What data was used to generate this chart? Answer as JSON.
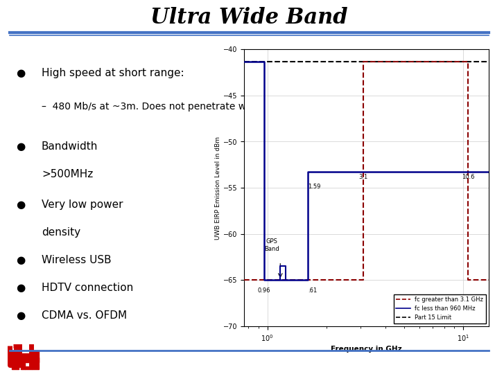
{
  "title": "Ultra Wide Band",
  "bullet1": "High speed at short range:",
  "sub_bullet1": "–  480 Mb/s at ~3m. Does not penetrate walls",
  "bullet2": "Bandwidth",
  "bullet2b": ">500MHz",
  "bullet3": "Very low power",
  "bullet3b": "density",
  "bullet4": "Wireless USB",
  "bullet5": "HDTV connection",
  "bullet6": "CDMA vs. OFDM",
  "plot_ylabel": "UWB EIRP Emission Level in dBm",
  "plot_xlabel": "Frequency in GHz",
  "legend_labels": [
    "fc greater than 3.1 GHz",
    "fc less than 960 MHz",
    "Part 15 Limit"
  ],
  "line_color_red": "#8B0000",
  "line_color_blue": "#00008B",
  "line_color_black": "#000000",
  "title_line_color": "#4472c4",
  "bg_color": "#ffffff",
  "text_color": "#000000",
  "grid_color": "#cccccc",
  "logo_color": "#cc0000"
}
